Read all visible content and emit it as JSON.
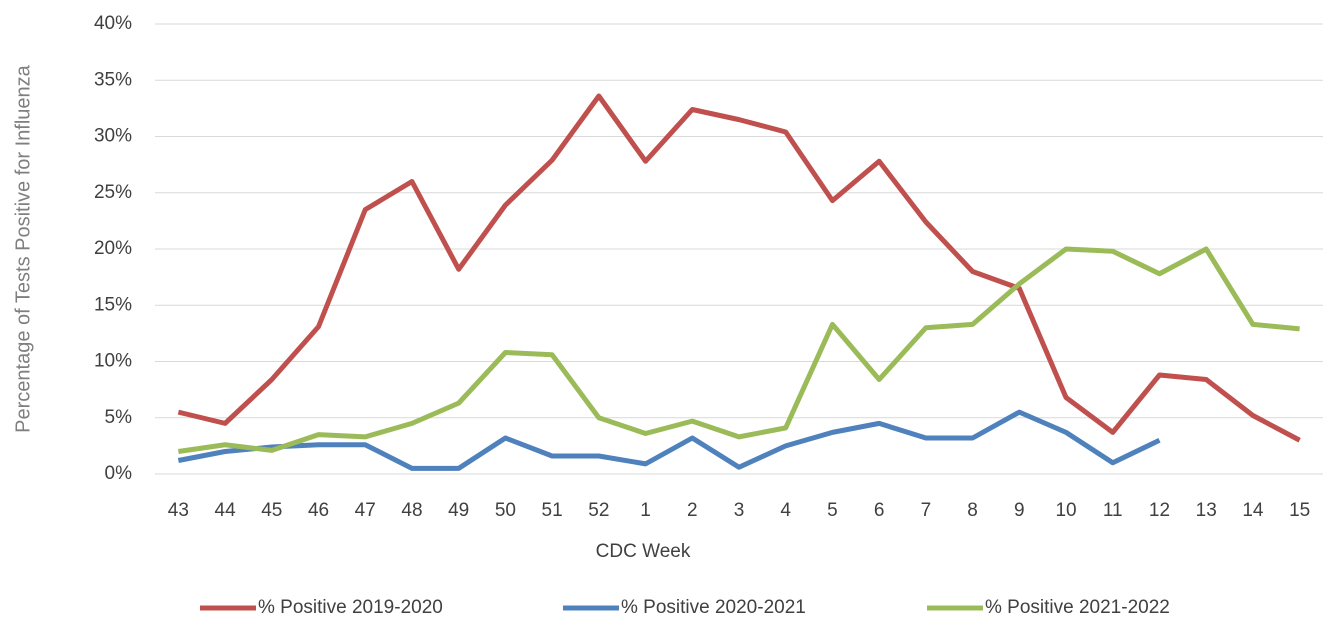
{
  "chart_data": {
    "type": "line",
    "x_label": "CDC Week",
    "y_label": "Percentage of Tests Positive for Influenza",
    "categories": [
      "43",
      "44",
      "45",
      "46",
      "47",
      "48",
      "49",
      "50",
      "51",
      "52",
      "1",
      "2",
      "3",
      "4",
      "5",
      "6",
      "7",
      "8",
      "9",
      "10",
      "11",
      "12",
      "13",
      "14",
      "15"
    ],
    "series": [
      {
        "name": "% Positive 2019-2020",
        "color": "#c0504d",
        "values": [
          5.5,
          4.5,
          8.4,
          13.1,
          23.5,
          26.0,
          18.2,
          23.9,
          27.9,
          33.6,
          27.8,
          32.4,
          31.5,
          30.4,
          24.3,
          27.8,
          22.4,
          18.0,
          16.5,
          6.8,
          3.7,
          8.8,
          8.4,
          5.2,
          3.0
        ]
      },
      {
        "name": "% Positive 2020-2021",
        "color": "#4f81bd",
        "values": [
          1.2,
          2.0,
          2.4,
          2.6,
          2.6,
          0.5,
          0.5,
          3.2,
          1.6,
          1.6,
          0.9,
          3.2,
          0.6,
          2.5,
          3.7,
          4.5,
          3.2,
          3.2,
          5.5,
          3.7,
          1.0,
          3.0,
          null,
          null,
          null
        ]
      },
      {
        "name": "% Positive 2021-2022",
        "color": "#9bbb59",
        "values": [
          2.0,
          2.6,
          2.1,
          3.5,
          3.3,
          4.5,
          6.3,
          10.8,
          10.6,
          5.0,
          3.6,
          4.7,
          3.3,
          4.1,
          13.3,
          8.4,
          13.0,
          13.3,
          16.9,
          20.0,
          19.8,
          17.8,
          20.0,
          13.3,
          12.9
        ]
      }
    ],
    "ylim": [
      0,
      40
    ],
    "yticks": [
      {
        "value": 0,
        "label": "0%"
      },
      {
        "value": 5,
        "label": "5%"
      },
      {
        "value": 10,
        "label": "10%"
      },
      {
        "value": 15,
        "label": "15%"
      },
      {
        "value": 20,
        "label": "20%"
      },
      {
        "value": 25,
        "label": "25%"
      },
      {
        "value": 30,
        "label": "30%"
      },
      {
        "value": 35,
        "label": "35%"
      },
      {
        "value": 40,
        "label": "40%"
      }
    ],
    "grid": true,
    "legend": "bottom"
  }
}
